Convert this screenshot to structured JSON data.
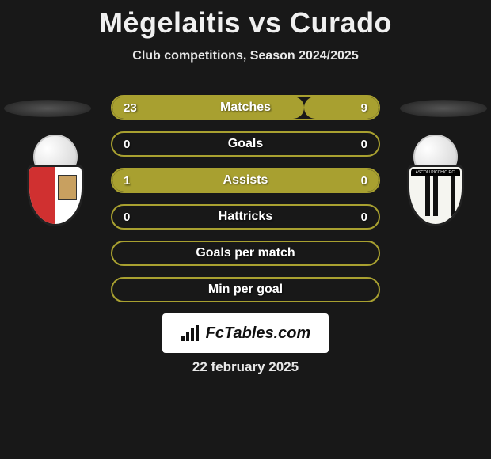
{
  "header": {
    "title": "Mėgelaitis vs Curado",
    "subtitle": "Club competitions, Season 2024/2025"
  },
  "theme": {
    "pill_border": "#a8a030",
    "pill_fill": "#a8a030",
    "pill_bg": "transparent",
    "text": "#ffffff"
  },
  "stats": [
    {
      "label": "Matches",
      "left_value": "23",
      "right_value": "9",
      "left_fill_pct": 72,
      "right_fill_pct": 28,
      "show_values": true
    },
    {
      "label": "Goals",
      "left_value": "0",
      "right_value": "0",
      "left_fill_pct": 0,
      "right_fill_pct": 0,
      "show_values": true
    },
    {
      "label": "Assists",
      "left_value": "1",
      "right_value": "0",
      "left_fill_pct": 100,
      "right_fill_pct": 0,
      "show_values": true
    },
    {
      "label": "Hattricks",
      "left_value": "0",
      "right_value": "0",
      "left_fill_pct": 0,
      "right_fill_pct": 0,
      "show_values": true
    },
    {
      "label": "Goals per match",
      "left_value": "",
      "right_value": "",
      "left_fill_pct": 0,
      "right_fill_pct": 0,
      "show_values": false
    },
    {
      "label": "Min per goal",
      "left_value": "",
      "right_value": "",
      "left_fill_pct": 0,
      "right_fill_pct": 0,
      "show_values": false
    }
  ],
  "branding": {
    "text": "FcTables.com"
  },
  "footer": {
    "date": "22 february 2025"
  }
}
